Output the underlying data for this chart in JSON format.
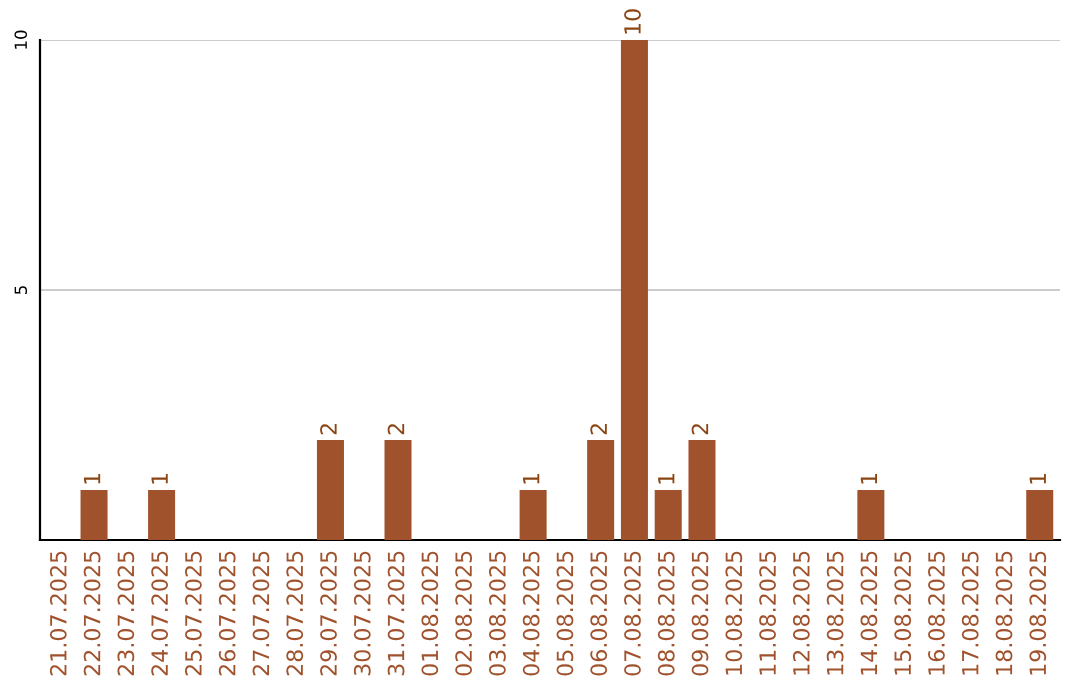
{
  "chart_data": {
    "type": "bar",
    "categories": [
      "21.07.2025",
      "22.07.2025",
      "23.07.2025",
      "24.07.2025",
      "25.07.2025",
      "26.07.2025",
      "27.07.2025",
      "28.07.2025",
      "29.07.2025",
      "30.07.2025",
      "31.07.2025",
      "01.08.2025",
      "02.08.2025",
      "03.08.2025",
      "04.08.2025",
      "05.08.2025",
      "06.08.2025",
      "07.08.2025",
      "08.08.2025",
      "09.08.2025",
      "10.08.2025",
      "11.08.2025",
      "12.08.2025",
      "13.08.2025",
      "14.08.2025",
      "15.08.2025",
      "16.08.2025",
      "17.08.2025",
      "18.08.2025",
      "19.08.2025"
    ],
    "values": [
      0,
      1,
      0,
      1,
      0,
      0,
      0,
      0,
      2,
      0,
      2,
      0,
      0,
      0,
      1,
      0,
      2,
      10,
      1,
      2,
      0,
      0,
      0,
      0,
      1,
      0,
      0,
      0,
      0,
      1
    ],
    "value_labels": [
      null,
      "1",
      null,
      "1",
      null,
      null,
      null,
      null,
      "2",
      null,
      "2",
      null,
      null,
      null,
      "1",
      null,
      "2",
      "10",
      "1",
      "2",
      null,
      null,
      null,
      null,
      "1",
      null,
      null,
      null,
      null,
      "1"
    ],
    "color": "#a0522d",
    "ylim": [
      0,
      10
    ],
    "yticks": [
      5,
      10
    ],
    "grid": "y"
  }
}
